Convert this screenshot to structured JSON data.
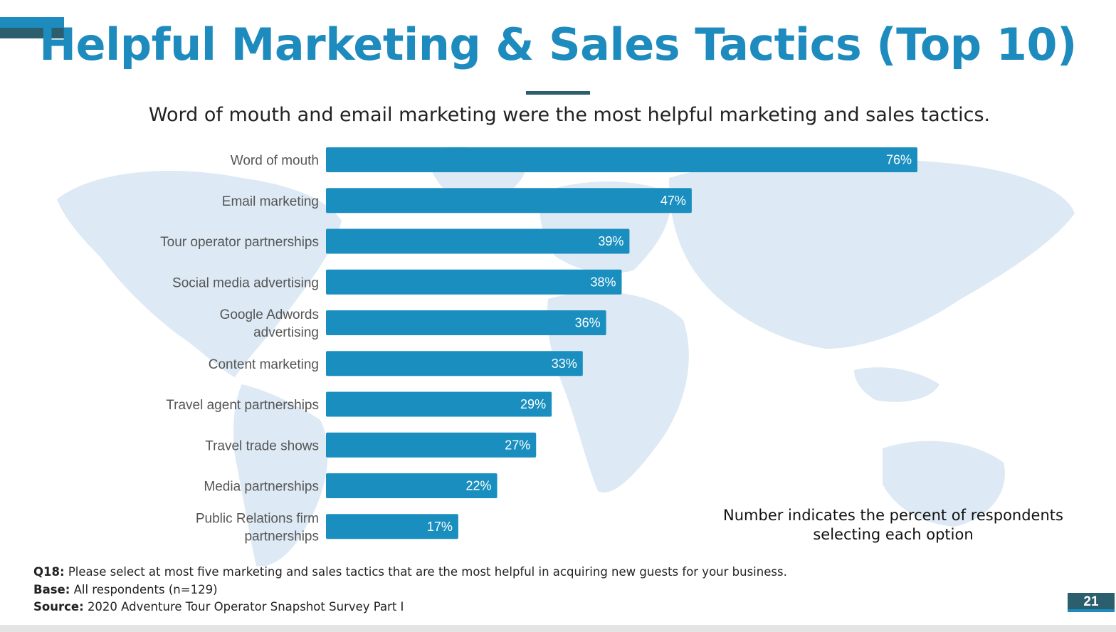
{
  "title": "Helpful Marketing & Sales Tactics (Top 10)",
  "subtitle": "Word of mouth and email marketing were the most helpful marketing and sales tactics.",
  "colors": {
    "accent": "#1d8bbd",
    "bar": "#1a8fbf",
    "dark_teal": "#2b5f6e",
    "map": "#dde9f4",
    "label": "#555555"
  },
  "icons": {
    "background": "world-map"
  },
  "chart_data": {
    "type": "bar",
    "orientation": "horizontal",
    "categories": [
      "Word of mouth",
      "Email marketing",
      "Tour operator partnerships",
      "Social media advertising",
      "Google Adwords advertising",
      "Content marketing",
      "Travel agent partnerships",
      "Travel trade shows",
      "Media partnerships",
      "Public Relations firm partnerships"
    ],
    "category_lines": [
      [
        "Word of mouth"
      ],
      [
        "Email marketing"
      ],
      [
        "Tour operator partnerships"
      ],
      [
        "Social media advertising"
      ],
      [
        "Google Adwords",
        "advertising"
      ],
      [
        "Content marketing"
      ],
      [
        "Travel agent partnerships"
      ],
      [
        "Travel trade shows"
      ],
      [
        "Media partnerships"
      ],
      [
        "Public Relations firm",
        "partnerships"
      ]
    ],
    "values": [
      76,
      47,
      39,
      38,
      36,
      33,
      29,
      27,
      22,
      17
    ],
    "value_labels": [
      "76%",
      "47%",
      "39%",
      "38%",
      "36%",
      "33%",
      "29%",
      "27%",
      "22%",
      "17%"
    ],
    "unit": "%",
    "grid": false,
    "legend": "none"
  },
  "note": {
    "line1": "Number indicates the percent of respondents",
    "line2": "selecting each option"
  },
  "footer": {
    "q_label": "Q18:",
    "q_text": "Please select at most five marketing and sales tactics that are the most helpful in acquiring new guests for your business.",
    "base_label": "Base:",
    "base_text": "All respondents (n=129)",
    "source_label": "Source:",
    "source_text": "2020 Adventure Tour Operator Snapshot Survey Part I"
  },
  "page_number": "21"
}
